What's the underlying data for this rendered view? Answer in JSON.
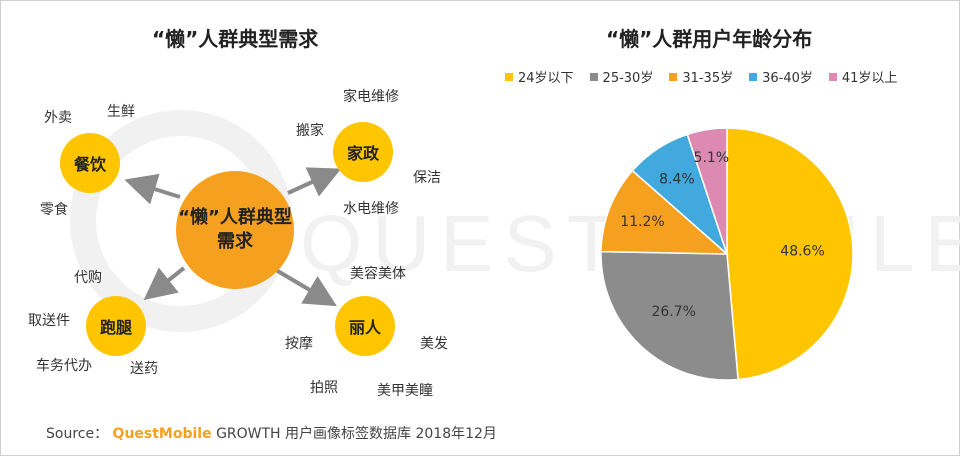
{
  "left_panel": {
    "title": "“懒”人群典型需求",
    "center_label_line1": "“懒”人群典型",
    "center_label_line2": "需求",
    "nodes": {
      "dining": {
        "label": "餐饮",
        "items": [
          "外卖",
          "生鲜",
          "零食"
        ]
      },
      "housekeeping": {
        "label": "家政",
        "items": [
          "家电维修",
          "搬家",
          "保洁",
          "水电维修"
        ]
      },
      "errands": {
        "label": "跑腿",
        "items": [
          "代购",
          "取送件",
          "车务代办",
          "送药"
        ]
      },
      "beauty": {
        "label": "丽人",
        "items": [
          "美容美体",
          "按摩",
          "美发",
          "拍照",
          "美甲美瞳"
        ]
      }
    }
  },
  "watermark": "QUESTMOBILE",
  "chart_data": {
    "type": "pie",
    "title": "“懒”人群用户年龄分布",
    "legend_position": "top",
    "series": [
      {
        "name": "24岁以下",
        "value": 48.6,
        "label": "48.6%",
        "color": "#ffc600"
      },
      {
        "name": "25-30岁",
        "value": 26.7,
        "label": "26.7%",
        "color": "#8c8c8c"
      },
      {
        "name": "31-35岁",
        "value": 11.2,
        "label": "11.2%",
        "color": "#f6a01f"
      },
      {
        "name": "36-40岁",
        "value": 8.4,
        "label": "8.4%",
        "color": "#41a9de"
      },
      {
        "name": "41岁以上",
        "value": 5.1,
        "label": "5.1%",
        "color": "#dc8ab1"
      }
    ]
  },
  "footer": {
    "prefix": "Source：",
    "brand": "QuestMobile",
    "rest": "GROWTH 用户画像标签数据库 2018年12月"
  }
}
